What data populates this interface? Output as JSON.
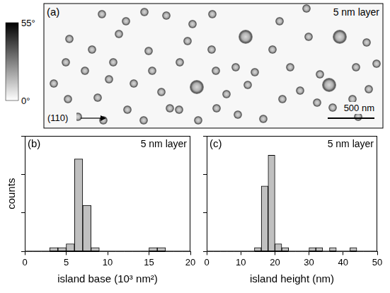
{
  "image_panel": {
    "panel_label": "(a)",
    "annotation": "5 nm layer",
    "direction_label": "(110)",
    "scale_bar": "500 nm",
    "colorbar": {
      "range": [
        0,
        55
      ],
      "ticks": [
        {
          "value": 55,
          "label": "55°"
        },
        {
          "value": 0,
          "label": "0°"
        }
      ]
    }
  },
  "chart_data": [
    {
      "type": "histogram",
      "panel_label": "(b)",
      "annotation": "5 nm layer",
      "x_label": "island base (10³ nm²)",
      "y_label": "counts",
      "bins": [
        0,
        1,
        2,
        3,
        4,
        5,
        6,
        7,
        8,
        9,
        10,
        11,
        12,
        13,
        14,
        15,
        16,
        17,
        18,
        19,
        20
      ],
      "counts": [
        0,
        0,
        0,
        1,
        1,
        2,
        24,
        12,
        1,
        0,
        0,
        0,
        0,
        0,
        0,
        1,
        1,
        0,
        0,
        0
      ],
      "color": "#c0c0c0",
      "xlim": [
        0,
        20
      ],
      "xticks": [
        0,
        5,
        10,
        15,
        20
      ],
      "ylim": [
        0,
        30
      ],
      "yticks": [
        0,
        10,
        20,
        30
      ],
      "tick_labels": "x",
      "grid": false
    },
    {
      "type": "histogram",
      "panel_label": "(c)",
      "annotation": "5 nm layer",
      "x_label": "island height (nm)",
      "bins": [
        0,
        2,
        4,
        6,
        8,
        10,
        12,
        14,
        16,
        18,
        20,
        22,
        24,
        26,
        28,
        30,
        32,
        34,
        36,
        38,
        40,
        42,
        44,
        46,
        48,
        50
      ],
      "counts": [
        0,
        0,
        0,
        0,
        0,
        0,
        0,
        1,
        17,
        25,
        2,
        1,
        0,
        0,
        0,
        1,
        1,
        0,
        1,
        0,
        0,
        1,
        0,
        0,
        0
      ],
      "color": "#c0c0c0",
      "xlim": [
        0,
        50
      ],
      "xticks": [
        0,
        10,
        20,
        30,
        40,
        50
      ],
      "ylim": [
        0,
        30
      ],
      "yticks": [
        0,
        10,
        20,
        30
      ],
      "tick_labels": "x",
      "grid": false
    }
  ]
}
